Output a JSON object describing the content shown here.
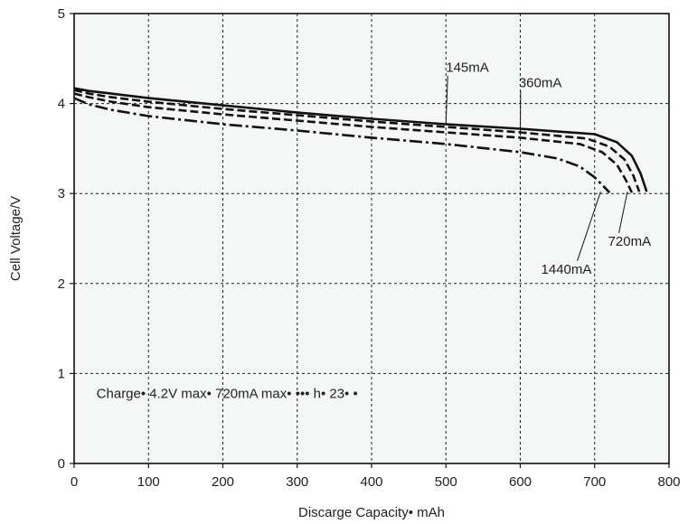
{
  "chart_data": {
    "type": "line",
    "title": "",
    "xlabel": "Discarge Capacity•  mAh",
    "ylabel": "Cell Voltage/V",
    "xlim": [
      0,
      800
    ],
    "ylim": [
      0,
      5
    ],
    "xticks": [
      0,
      100,
      200,
      300,
      400,
      500,
      600,
      700,
      800
    ],
    "yticks": [
      0,
      1,
      2,
      3,
      4,
      5
    ],
    "grid": true,
    "background": "#f5f6f6",
    "annotation": "Charge• 4.2V max• 720mA max• ••• h• 23•  •",
    "series": [
      {
        "name": "145mA",
        "linestyle": "solid",
        "x": [
          0,
          20,
          50,
          100,
          200,
          300,
          400,
          500,
          600,
          700,
          730,
          750,
          762,
          770
        ],
        "y": [
          4.17,
          4.14,
          4.11,
          4.06,
          3.98,
          3.9,
          3.83,
          3.77,
          3.72,
          3.66,
          3.57,
          3.42,
          3.22,
          3.02
        ]
      },
      {
        "name": "360mA",
        "linestyle": "dashed",
        "x": [
          0,
          20,
          50,
          100,
          200,
          300,
          400,
          500,
          600,
          690,
          720,
          740,
          752,
          760
        ],
        "y": [
          4.15,
          4.11,
          4.07,
          4.02,
          3.94,
          3.87,
          3.8,
          3.74,
          3.68,
          3.61,
          3.52,
          3.38,
          3.2,
          3.02
        ]
      },
      {
        "name": "720mA",
        "linestyle": "dashed",
        "x": [
          0,
          20,
          50,
          100,
          200,
          300,
          400,
          500,
          600,
          680,
          710,
          730,
          742,
          750
        ],
        "y": [
          4.11,
          4.07,
          4.02,
          3.96,
          3.88,
          3.81,
          3.74,
          3.68,
          3.62,
          3.55,
          3.46,
          3.32,
          3.15,
          3.01
        ]
      },
      {
        "name": "1440mA",
        "linestyle": "dashdot",
        "x": [
          0,
          20,
          50,
          100,
          200,
          300,
          400,
          500,
          600,
          650,
          680,
          700,
          712,
          720
        ],
        "y": [
          4.06,
          3.99,
          3.93,
          3.86,
          3.77,
          3.7,
          3.62,
          3.55,
          3.46,
          3.39,
          3.3,
          3.18,
          3.08,
          3.01
        ]
      }
    ],
    "labels": [
      {
        "series": "145mA",
        "text": "145mA",
        "at": [
          500,
          4.35
        ],
        "leader_to": [
          500,
          3.78
        ]
      },
      {
        "series": "360mA",
        "text": "360mA",
        "at": [
          598,
          4.18
        ],
        "leader_to": [
          600,
          3.67
        ]
      },
      {
        "series": "720mA",
        "text": "720mA",
        "at": [
          718,
          2.42
        ],
        "leader_to": [
          744,
          3.02
        ]
      },
      {
        "series": "1440mA",
        "text": "1440mA",
        "at": [
          628,
          2.11
        ],
        "leader_to": [
          708,
          3.02
        ]
      }
    ]
  }
}
